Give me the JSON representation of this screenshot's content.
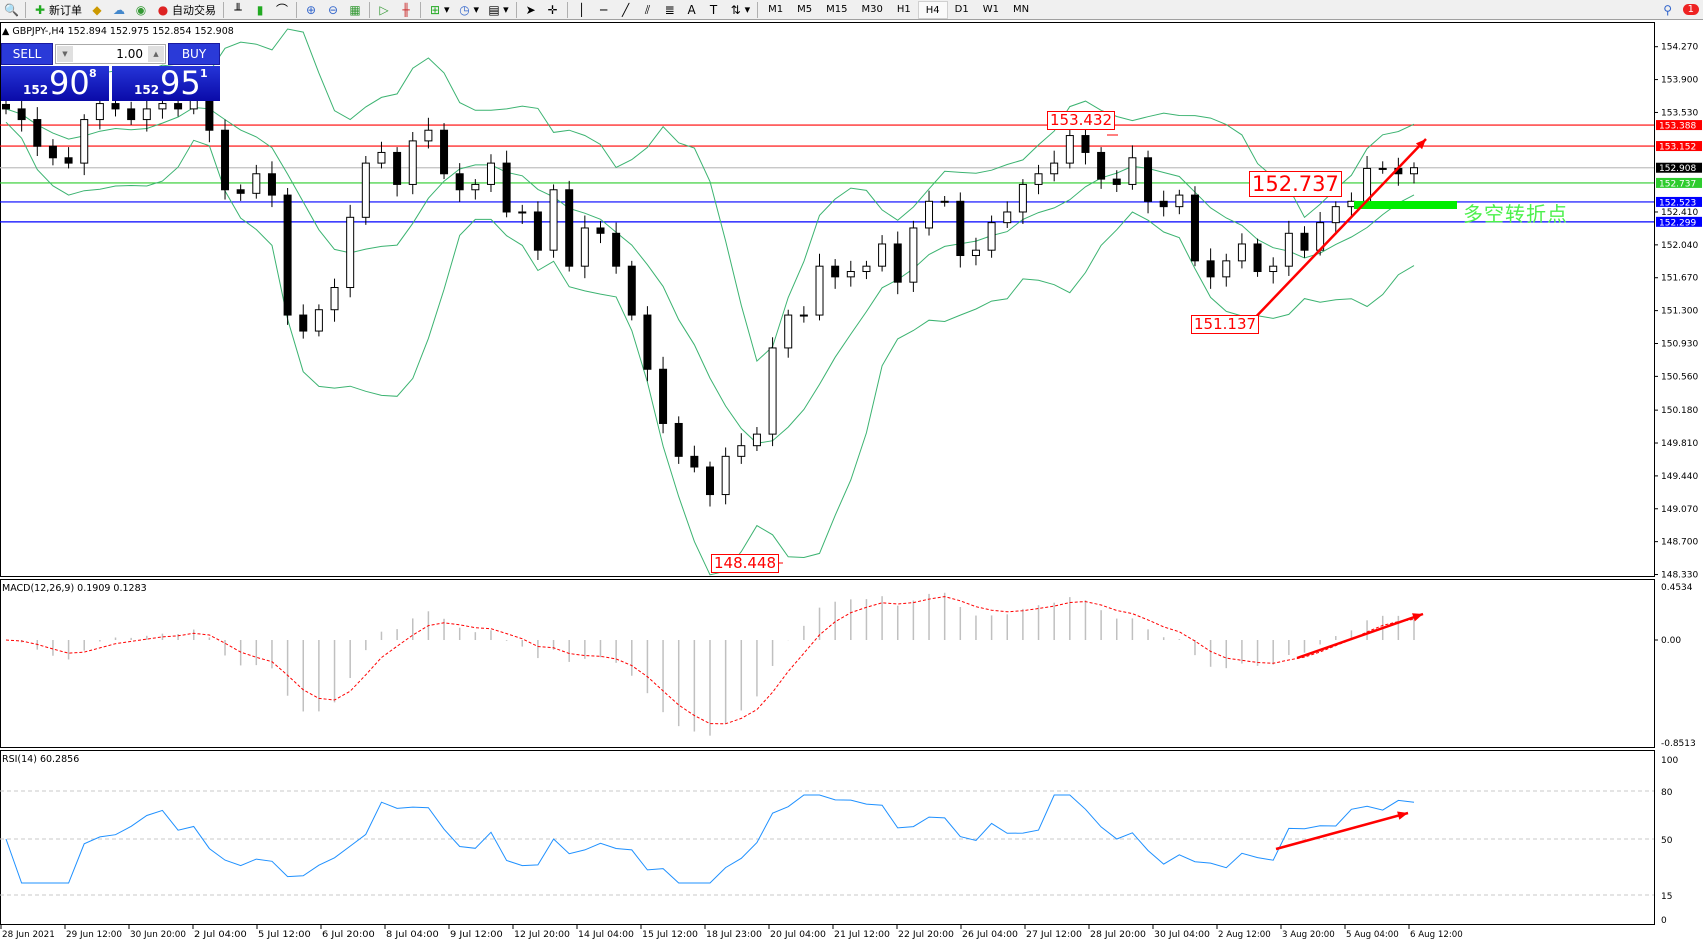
{
  "toolbar": {
    "new_order": "新订单",
    "auto_trading": "自动交易",
    "timeframes": [
      "M1",
      "M5",
      "M15",
      "M30",
      "H1",
      "H4",
      "D1",
      "W1",
      "MN"
    ],
    "active_timeframe": "H4",
    "notification_count": "1"
  },
  "chart": {
    "title": "GBPJPY-,H4  152.894 152.975 152.854 152.908",
    "trade_panel": {
      "sell_label": "SELL",
      "buy_label": "BUY",
      "lot": "1.00",
      "sell_small": "152",
      "sell_big": "90",
      "sell_pip": "8",
      "buy_small": "152",
      "buy_big": "95",
      "buy_pip": "1"
    },
    "price_ticks": [
      "154.270",
      "153.900",
      "153.530",
      "152.410",
      "152.040",
      "151.670",
      "151.300",
      "150.930",
      "150.560",
      "150.180",
      "149.810",
      "149.440",
      "149.070",
      "148.700",
      "148.330"
    ],
    "hlines": [
      {
        "price": 153.388,
        "label": "153.388",
        "color": "#ff0000"
      },
      {
        "price": 153.152,
        "label": "153.152",
        "color": "#ff0000"
      },
      {
        "price": 152.908,
        "label": "152.908",
        "color": "#c0c0c0",
        "tag": "#000000"
      },
      {
        "price": 152.737,
        "label": "152.737",
        "color": "#2ecc2e"
      },
      {
        "price": 152.523,
        "label": "152.523",
        "color": "#0000ff"
      },
      {
        "price": 152.299,
        "label": "152.299",
        "color": "#0000ff"
      }
    ],
    "annotations": {
      "high": "153.432",
      "low": "148.448",
      "swing_low": "151.137",
      "pivot": "152.737",
      "pivot_text": "多空转折点"
    },
    "closes": [
      153.57,
      153.45,
      153.15,
      153.02,
      152.96,
      153.45,
      153.63,
      153.57,
      153.45,
      153.57,
      153.63,
      153.57,
      153.82,
      153.33,
      152.66,
      152.62,
      152.84,
      152.6,
      151.25,
      151.07,
      151.31,
      151.56,
      152.35,
      152.96,
      153.08,
      152.72,
      153.21,
      153.33,
      152.84,
      152.66,
      152.72,
      152.96,
      152.41,
      152.41,
      151.98,
      152.66,
      151.8,
      152.23,
      152.17,
      151.8,
      151.25,
      150.64,
      150.03,
      149.66,
      149.54,
      149.23,
      149.66,
      149.78,
      149.91,
      150.88,
      151.25,
      151.25,
      151.8,
      151.68,
      151.74,
      151.8,
      152.05,
      151.62,
      152.23,
      152.53,
      152.53,
      151.92,
      151.98,
      152.29,
      152.41,
      152.72,
      152.84,
      152.96,
      153.27,
      153.08,
      152.78,
      152.72,
      153.02,
      152.53,
      152.47,
      152.6,
      151.86,
      151.68,
      151.86,
      152.05,
      151.74,
      151.8,
      152.17,
      151.98,
      152.29,
      152.47,
      152.53,
      152.9,
      152.9,
      152.84,
      152.908
    ]
  },
  "macd": {
    "label": "MACD(12,26,9) 0.1909 0.1283",
    "ticks": [
      "0.4534",
      "0.00",
      "-0.8513"
    ]
  },
  "rsi": {
    "label": "RSI(14) 60.2856",
    "ticks": [
      "100",
      "80",
      "50",
      "15",
      "0"
    ]
  },
  "time_axis": [
    "28 Jun 2021",
    "29 Jun 12:00",
    "30 Jun 20:00",
    "2 Jul 04:00",
    "5 Jul 12:00",
    "6 Jul 20:00",
    "8 Jul 04:00",
    "9 Jul 12:00",
    "12 Jul 20:00",
    "14 Jul 04:00",
    "15 Jul 12:00",
    "18 Jul 23:00",
    "20 Jul 04:00",
    "21 Jul 12:00",
    "22 Jul 20:00",
    "26 Jul 04:00",
    "27 Jul 12:00",
    "28 Jul 20:00",
    "30 Jul 04:00",
    "2 Aug 12:00",
    "3 Aug 20:00",
    "5 Aug 04:00",
    "6 Aug 12:00"
  ],
  "colors": {
    "bands": "#3cb371",
    "annotation": "#ff0000",
    "pivot_bar": "#00ee00",
    "macd_hist": "#c0c0c0",
    "rsi_line": "#1e90ff"
  }
}
